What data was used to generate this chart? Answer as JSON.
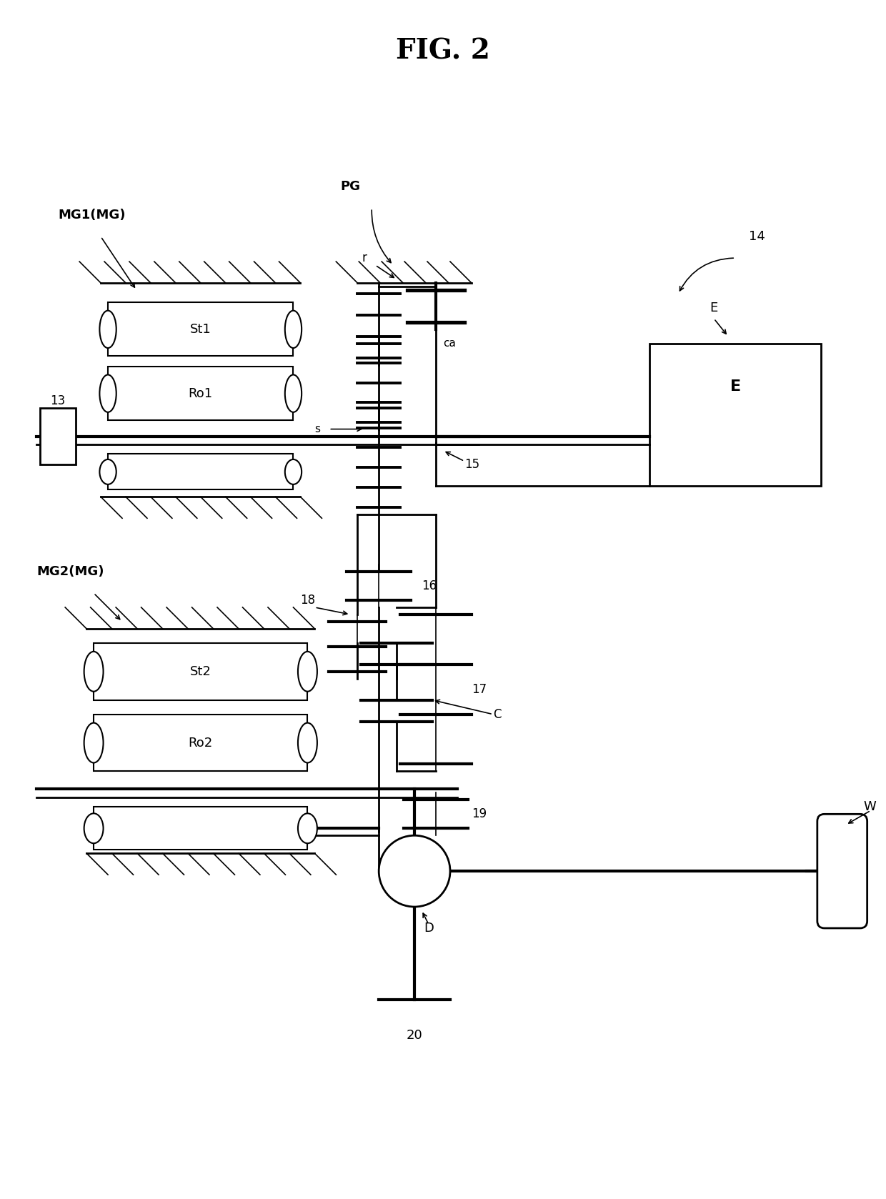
{
  "title": "FIG. 2",
  "bg_color": "#ffffff",
  "line_color": "#000000",
  "fig_width": 12.4,
  "fig_height": 16.78,
  "labels": {
    "MG1": "MG1(MG)",
    "MG2": "MG2(MG)",
    "PG": "PG",
    "r": "r",
    "ca": "ca",
    "s": "s",
    "E": "E",
    "St1": "St1",
    "Ro1": "Ro1",
    "St2": "St2",
    "Ro2": "Ro2",
    "C": "C",
    "D": "D",
    "W": "W",
    "n13": "13",
    "n14": "14",
    "n15": "15",
    "n16": "16",
    "n17": "17",
    "n18": "18",
    "n19": "19",
    "n20": "20"
  }
}
